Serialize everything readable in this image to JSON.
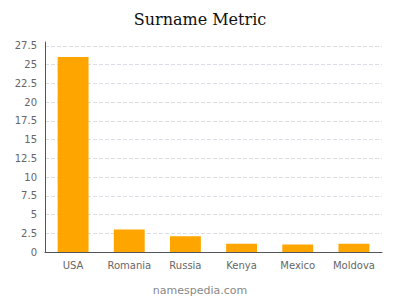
{
  "chart_data": {
    "type": "bar",
    "title": "Surname Metric",
    "categories": [
      "USA",
      "Romania",
      "Russia",
      "Kenya",
      "Mexico",
      "Moldova"
    ],
    "values": [
      26.0,
      3.0,
      2.1,
      1.1,
      1.0,
      1.1
    ],
    "color": "#FFA500",
    "ylim": [
      0,
      28
    ],
    "yticks": [
      0,
      2.5,
      5,
      7.5,
      10,
      12.5,
      15,
      17.5,
      20,
      22.5,
      25,
      27.5
    ],
    "grid": true,
    "annotations": [
      "namespedia.com"
    ]
  }
}
